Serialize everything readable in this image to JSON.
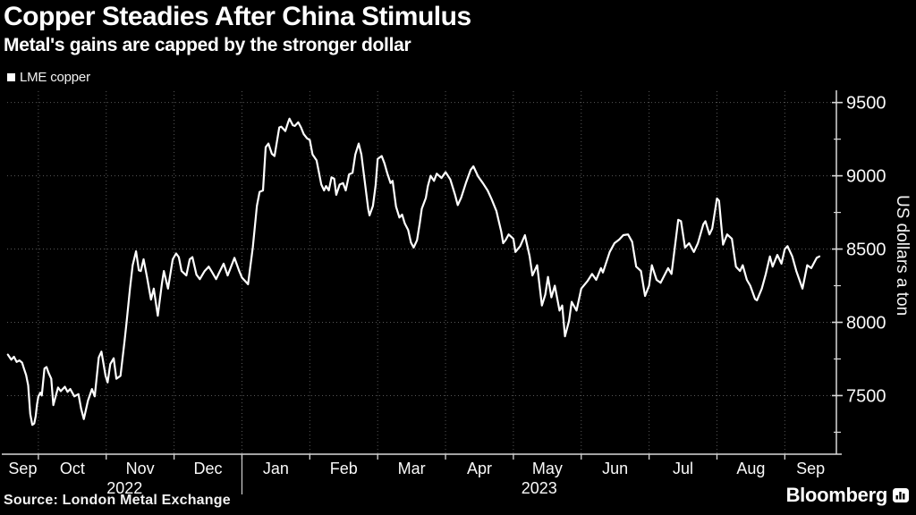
{
  "header": {
    "title": "Copper Steadies After China Stimulus",
    "subtitle": "Metal's gains are capped by the stronger dollar"
  },
  "legend": {
    "items": [
      {
        "label": "LME copper",
        "marker_color": "#ffffff"
      }
    ]
  },
  "footer": {
    "source": "Source: London Metal Exchange",
    "brand": "Bloomberg"
  },
  "colors": {
    "background": "#000000",
    "text": "#ffffff",
    "grid": "#585858",
    "axis": "#d9d9d9",
    "line": "#ffffff"
  },
  "chart_data": {
    "type": "line",
    "title": "Copper Steadies After China Stimulus",
    "subtitle": "Metal's gains are capped by the stronger dollar",
    "x_axis": {
      "unit": "months since 2022-09-01",
      "range": [
        0.54,
        12.76
      ],
      "month_labels": [
        "Sep",
        "Oct",
        "Nov",
        "Dec",
        "Jan",
        "Feb",
        "Mar",
        "Apr",
        "May",
        "Jun",
        "Jul",
        "Aug",
        "Sep"
      ],
      "year_labels": [
        {
          "label": "2022",
          "span": [
            0.54,
            4
          ]
        },
        {
          "label": "2023",
          "span": [
            4,
            12.76
          ]
        }
      ],
      "grid": true
    },
    "y_axis": {
      "label": "US dollars a ton",
      "side": "right",
      "range": [
        7100,
        9620
      ],
      "major_ticks": [
        7500,
        8000,
        8500,
        9000,
        9500
      ],
      "minor_ticks": [
        7250,
        7750,
        8250,
        8750,
        9250
      ],
      "grid": true
    },
    "series": [
      {
        "name": "LME copper",
        "color": "#ffffff",
        "points": [
          [
            0.55,
            7780
          ],
          [
            0.6,
            7745
          ],
          [
            0.64,
            7765
          ],
          [
            0.68,
            7730
          ],
          [
            0.72,
            7740
          ],
          [
            0.76,
            7725
          ],
          [
            0.79,
            7680
          ],
          [
            0.82,
            7640
          ],
          [
            0.85,
            7570
          ],
          [
            0.88,
            7375
          ],
          [
            0.91,
            7300
          ],
          [
            0.94,
            7310
          ],
          [
            0.96,
            7360
          ],
          [
            0.98,
            7440
          ],
          [
            1.0,
            7495
          ],
          [
            1.03,
            7520
          ],
          [
            1.05,
            7500
          ],
          [
            1.09,
            7685
          ],
          [
            1.12,
            7695
          ],
          [
            1.15,
            7655
          ],
          [
            1.19,
            7615
          ],
          [
            1.22,
            7435
          ],
          [
            1.29,
            7555
          ],
          [
            1.33,
            7530
          ],
          [
            1.39,
            7560
          ],
          [
            1.43,
            7525
          ],
          [
            1.47,
            7545
          ],
          [
            1.53,
            7495
          ],
          [
            1.59,
            7510
          ],
          [
            1.63,
            7410
          ],
          [
            1.67,
            7340
          ],
          [
            1.73,
            7465
          ],
          [
            1.79,
            7545
          ],
          [
            1.83,
            7495
          ],
          [
            1.89,
            7760
          ],
          [
            1.93,
            7800
          ],
          [
            1.99,
            7635
          ],
          [
            2.02,
            7590
          ],
          [
            2.06,
            7715
          ],
          [
            2.11,
            7755
          ],
          [
            2.15,
            7615
          ],
          [
            2.21,
            7635
          ],
          [
            2.27,
            7870
          ],
          [
            2.3,
            8000
          ],
          [
            2.35,
            8230
          ],
          [
            2.39,
            8390
          ],
          [
            2.44,
            8485
          ],
          [
            2.48,
            8355
          ],
          [
            2.51,
            8350
          ],
          [
            2.55,
            8430
          ],
          [
            2.6,
            8310
          ],
          [
            2.66,
            8155
          ],
          [
            2.7,
            8230
          ],
          [
            2.76,
            8045
          ],
          [
            2.82,
            8265
          ],
          [
            2.85,
            8350
          ],
          [
            2.91,
            8230
          ],
          [
            2.98,
            8430
          ],
          [
            3.03,
            8470
          ],
          [
            3.07,
            8445
          ],
          [
            3.11,
            8350
          ],
          [
            3.18,
            8320
          ],
          [
            3.23,
            8430
          ],
          [
            3.27,
            8445
          ],
          [
            3.33,
            8325
          ],
          [
            3.38,
            8295
          ],
          [
            3.45,
            8350
          ],
          [
            3.51,
            8380
          ],
          [
            3.55,
            8350
          ],
          [
            3.62,
            8295
          ],
          [
            3.66,
            8335
          ],
          [
            3.73,
            8400
          ],
          [
            3.79,
            8320
          ],
          [
            3.89,
            8440
          ],
          [
            3.96,
            8350
          ],
          [
            4.0,
            8305
          ],
          [
            4.09,
            8260
          ],
          [
            4.16,
            8510
          ],
          [
            4.22,
            8795
          ],
          [
            4.26,
            8890
          ],
          [
            4.31,
            8900
          ],
          [
            4.35,
            9195
          ],
          [
            4.39,
            9220
          ],
          [
            4.44,
            9150
          ],
          [
            4.48,
            9135
          ],
          [
            4.55,
            9330
          ],
          [
            4.58,
            9335
          ],
          [
            4.64,
            9305
          ],
          [
            4.68,
            9365
          ],
          [
            4.7,
            9390
          ],
          [
            4.75,
            9345
          ],
          [
            4.78,
            9340
          ],
          [
            4.83,
            9365
          ],
          [
            4.87,
            9330
          ],
          [
            4.91,
            9285
          ],
          [
            4.96,
            9255
          ],
          [
            5.0,
            9245
          ],
          [
            5.04,
            9145
          ],
          [
            5.1,
            9105
          ],
          [
            5.17,
            8940
          ],
          [
            5.21,
            8900
          ],
          [
            5.24,
            8930
          ],
          [
            5.28,
            8900
          ],
          [
            5.32,
            8990
          ],
          [
            5.36,
            8980
          ],
          [
            5.39,
            8870
          ],
          [
            5.44,
            8940
          ],
          [
            5.49,
            8950
          ],
          [
            5.53,
            8900
          ],
          [
            5.58,
            9010
          ],
          [
            5.63,
            9020
          ],
          [
            5.67,
            9145
          ],
          [
            5.72,
            9220
          ],
          [
            5.76,
            9145
          ],
          [
            5.81,
            8960
          ],
          [
            5.86,
            8775
          ],
          [
            5.88,
            8730
          ],
          [
            5.93,
            8795
          ],
          [
            5.97,
            8935
          ],
          [
            6.0,
            9115
          ],
          [
            6.06,
            9135
          ],
          [
            6.1,
            9085
          ],
          [
            6.14,
            9020
          ],
          [
            6.19,
            8950
          ],
          [
            6.22,
            8965
          ],
          [
            6.27,
            8790
          ],
          [
            6.32,
            8715
          ],
          [
            6.36,
            8735
          ],
          [
            6.4,
            8675
          ],
          [
            6.45,
            8630
          ],
          [
            6.49,
            8545
          ],
          [
            6.53,
            8510
          ],
          [
            6.58,
            8560
          ],
          [
            6.62,
            8675
          ],
          [
            6.65,
            8775
          ],
          [
            6.71,
            8850
          ],
          [
            6.74,
            8930
          ],
          [
            6.78,
            9000
          ],
          [
            6.83,
            8965
          ],
          [
            6.87,
            9015
          ],
          [
            6.94,
            8985
          ],
          [
            7.0,
            9025
          ],
          [
            7.07,
            8975
          ],
          [
            7.14,
            8870
          ],
          [
            7.18,
            8800
          ],
          [
            7.23,
            8850
          ],
          [
            7.3,
            8950
          ],
          [
            7.37,
            9040
          ],
          [
            7.41,
            9065
          ],
          [
            7.48,
            8995
          ],
          [
            7.55,
            8950
          ],
          [
            7.62,
            8900
          ],
          [
            7.68,
            8840
          ],
          [
            7.75,
            8760
          ],
          [
            7.78,
            8700
          ],
          [
            7.82,
            8620
          ],
          [
            7.85,
            8540
          ],
          [
            7.89,
            8565
          ],
          [
            7.93,
            8600
          ],
          [
            8.0,
            8570
          ],
          [
            8.03,
            8480
          ],
          [
            8.1,
            8520
          ],
          [
            8.17,
            8595
          ],
          [
            8.24,
            8450
          ],
          [
            8.28,
            8320
          ],
          [
            8.35,
            8390
          ],
          [
            8.42,
            8115
          ],
          [
            8.47,
            8190
          ],
          [
            8.51,
            8310
          ],
          [
            8.56,
            8170
          ],
          [
            8.61,
            8250
          ],
          [
            8.68,
            8080
          ],
          [
            8.72,
            8115
          ],
          [
            8.76,
            7905
          ],
          [
            8.82,
            8010
          ],
          [
            8.86,
            8140
          ],
          [
            8.93,
            8080
          ],
          [
            9.0,
            8230
          ],
          [
            9.09,
            8280
          ],
          [
            9.16,
            8330
          ],
          [
            9.22,
            8290
          ],
          [
            9.29,
            8370
          ],
          [
            9.32,
            8340
          ],
          [
            9.42,
            8480
          ],
          [
            9.49,
            8540
          ],
          [
            9.56,
            8565
          ],
          [
            9.62,
            8595
          ],
          [
            9.69,
            8600
          ],
          [
            9.75,
            8550
          ],
          [
            9.81,
            8380
          ],
          [
            9.88,
            8350
          ],
          [
            9.94,
            8180
          ],
          [
            10.0,
            8250
          ],
          [
            10.04,
            8390
          ],
          [
            10.11,
            8290
          ],
          [
            10.17,
            8270
          ],
          [
            10.28,
            8370
          ],
          [
            10.33,
            8330
          ],
          [
            10.43,
            8700
          ],
          [
            10.47,
            8690
          ],
          [
            10.53,
            8510
          ],
          [
            10.59,
            8540
          ],
          [
            10.66,
            8480
          ],
          [
            10.72,
            8540
          ],
          [
            10.8,
            8670
          ],
          [
            10.83,
            8690
          ],
          [
            10.89,
            8600
          ],
          [
            10.93,
            8640
          ],
          [
            11.0,
            8845
          ],
          [
            11.03,
            8830
          ],
          [
            11.09,
            8530
          ],
          [
            11.15,
            8600
          ],
          [
            11.22,
            8570
          ],
          [
            11.28,
            8380
          ],
          [
            11.34,
            8350
          ],
          [
            11.38,
            8390
          ],
          [
            11.44,
            8290
          ],
          [
            11.49,
            8250
          ],
          [
            11.56,
            8160
          ],
          [
            11.59,
            8150
          ],
          [
            11.66,
            8230
          ],
          [
            11.72,
            8330
          ],
          [
            11.78,
            8450
          ],
          [
            11.82,
            8380
          ],
          [
            11.89,
            8460
          ],
          [
            11.95,
            8400
          ],
          [
            12.0,
            8500
          ],
          [
            12.04,
            8520
          ],
          [
            12.11,
            8450
          ],
          [
            12.17,
            8350
          ],
          [
            12.26,
            8230
          ],
          [
            12.33,
            8390
          ],
          [
            12.39,
            8370
          ],
          [
            12.47,
            8440
          ],
          [
            12.51,
            8450
          ]
        ]
      }
    ]
  }
}
